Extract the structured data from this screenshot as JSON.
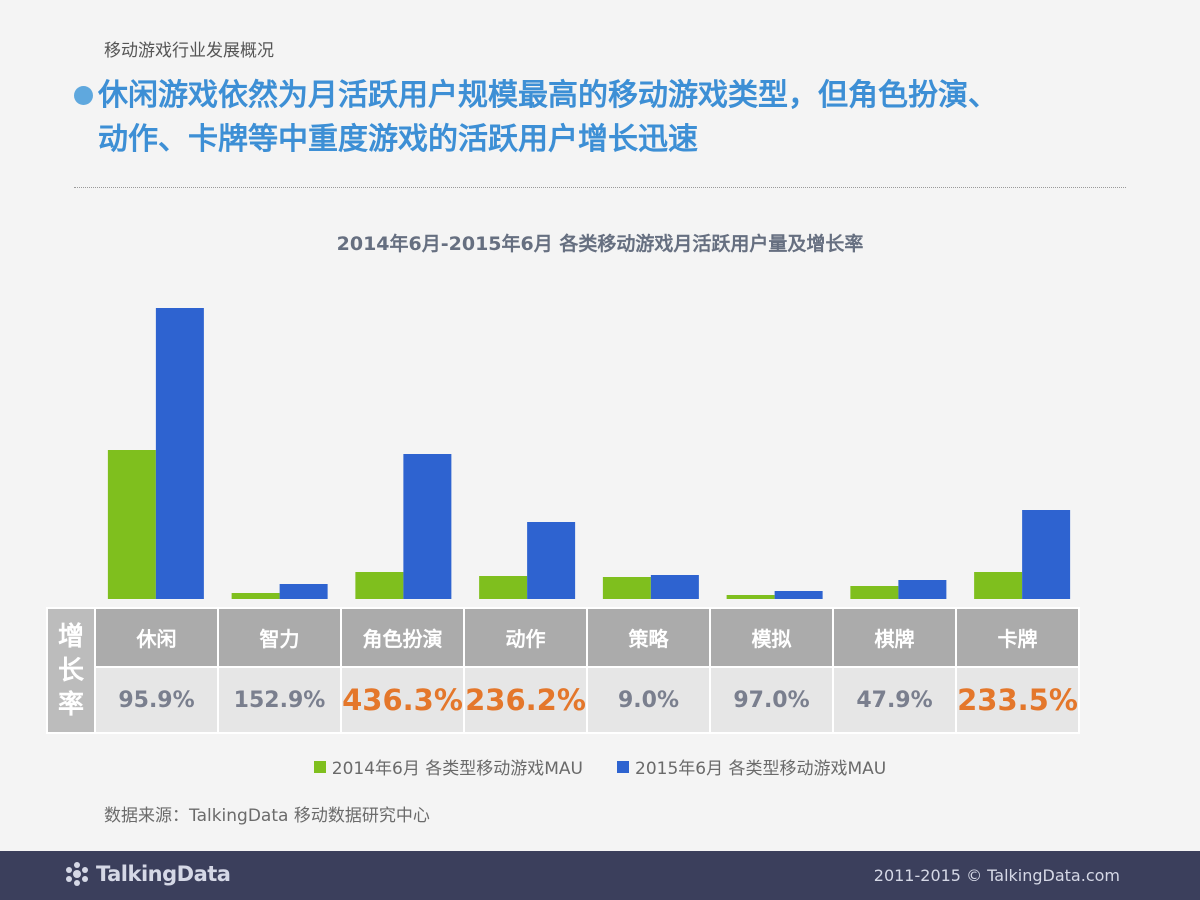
{
  "header": {
    "section_label": "移动游戏行业发展概况",
    "headline_line1": "休闲游戏依然为月活跃用户规模最高的移动游戏类型，但角色扮演、",
    "headline_line2": "动作、卡牌等中重度游戏的活跃用户增长迅速"
  },
  "chart_data": {
    "type": "bar",
    "title": "2014年6月-2015年6月 各类移动游戏月活跃用户量及增长率",
    "categories": [
      "休闲",
      "智力",
      "角色扮演",
      "动作",
      "策略",
      "模拟",
      "棋牌",
      "卡牌"
    ],
    "series": [
      {
        "name": "2014年6月 各类型移动游戏MAU",
        "color": "#7fbf1e",
        "values": [
          149,
          6,
          27,
          23,
          22,
          4,
          13,
          27
        ]
      },
      {
        "name": "2015年6月 各类型移动游戏MAU",
        "color": "#2e63d0",
        "values": [
          291,
          15,
          145,
          77,
          24,
          8,
          19,
          89
        ]
      }
    ],
    "ylim": [
      0,
      300
    ],
    "growth_rates": [
      "95.9%",
      "152.9%",
      "436.3%",
      "236.2%",
      "9.0%",
      "97.0%",
      "47.9%",
      "233.5%"
    ],
    "highlight_color": "#e4772b",
    "highlighted": [
      false,
      false,
      true,
      true,
      false,
      false,
      false,
      true
    ]
  },
  "table": {
    "row_header": "增长率"
  },
  "source": "数据来源：TalkingData 移动数据研究中心",
  "footer": {
    "logo_text": "TalkingData",
    "copyright": "2011-2015 © TalkingData.com"
  }
}
